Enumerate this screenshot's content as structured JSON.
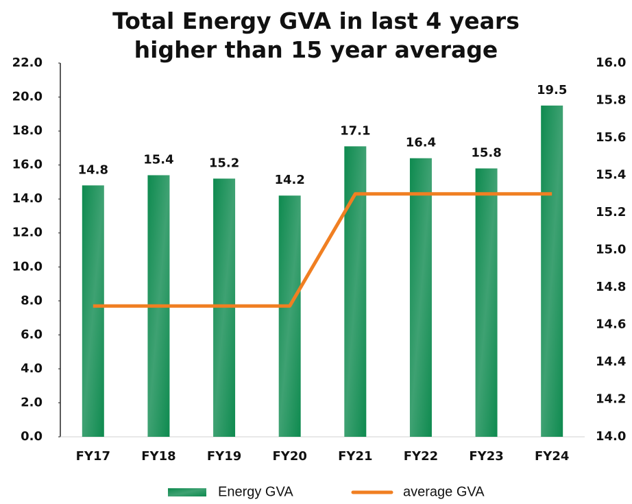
{
  "chart_data": {
    "type": "bar",
    "title": "Total Energy GVA in last 4 years higher than 15 year average",
    "categories": [
      "FY17",
      "FY18",
      "FY19",
      "FY20",
      "FY21",
      "FY22",
      "FY23",
      "FY24"
    ],
    "series": [
      {
        "name": "Energy GVA",
        "color": "#0e8a4f",
        "values": [
          14.8,
          15.4,
          15.2,
          14.2,
          17.1,
          16.4,
          15.8,
          19.5
        ]
      },
      {
        "name": "average GVA",
        "color": "#f07f22",
        "type": "line",
        "axis": "y2",
        "values": [
          14.7,
          14.7,
          14.7,
          14.7,
          15.3,
          15.3,
          15.3,
          15.3
        ]
      }
    ],
    "ylim": [
      0,
      22
    ],
    "yticks": [
      {
        "value": 0,
        "label": "0.0"
      },
      {
        "value": 2,
        "label": "2.0"
      },
      {
        "value": 4,
        "label": "4.0"
      },
      {
        "value": 6,
        "label": "6.0"
      },
      {
        "value": 8,
        "label": "8.0"
      },
      {
        "value": 10,
        "label": "10.0"
      },
      {
        "value": 12,
        "label": "12.0"
      },
      {
        "value": 14,
        "label": "14.0"
      },
      {
        "value": 16,
        "label": "16.0"
      },
      {
        "value": 18,
        "label": "18.0"
      },
      {
        "value": 20,
        "label": "20.0"
      },
      {
        "value": 22,
        "label": "22.0"
      }
    ],
    "y2lim": [
      14,
      16
    ],
    "y2ticks": [
      {
        "value": 14,
        "label": "14.0"
      },
      {
        "value": 14.2,
        "label": "14.2"
      },
      {
        "value": 14.4,
        "label": "14.4"
      },
      {
        "value": 14.6,
        "label": "14.6"
      },
      {
        "value": 14.8,
        "label": "14.8"
      },
      {
        "value": 15,
        "label": "15.0"
      },
      {
        "value": 15.2,
        "label": "15.2"
      },
      {
        "value": 15.4,
        "label": "15.4"
      },
      {
        "value": 15.6,
        "label": "15.6"
      },
      {
        "value": 15.8,
        "label": "15.8"
      },
      {
        "value": 16,
        "label": "16.0"
      }
    ],
    "grid": false
  }
}
